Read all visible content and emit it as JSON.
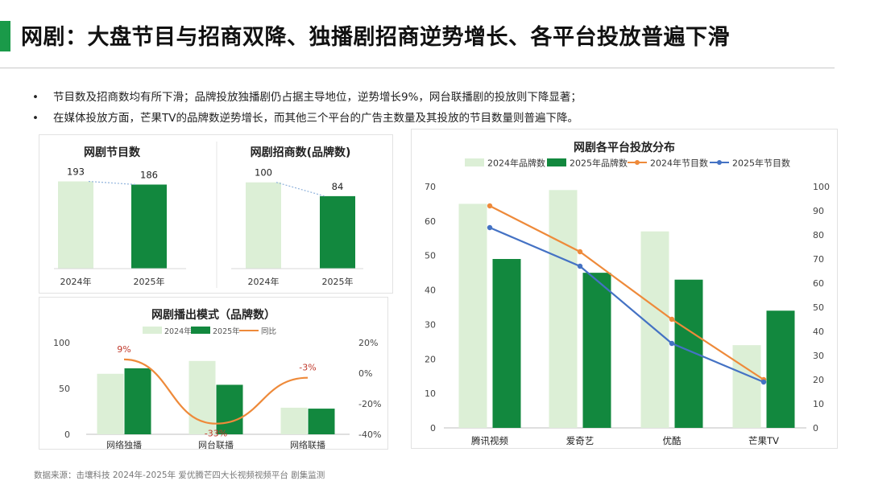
{
  "page": {
    "title": "网剧：大盘节目与招商双降、独播剧招商逆势增长、各平台投放普遍下滑",
    "bullets": [
      "节目数及招商数均有所下滑；品牌投放独播剧仍占据主导地位，逆势增长9%，网台联播剧的投放则下降显著；",
      "在媒体投放方面，芒果TV的品牌数逆势增长，而其他三个平台的广告主数量及其投放的节目数量则普遍下降。"
    ],
    "source": "数据来源：击壤科技 2024年-2025年 爱优腾芒四大长视频视频平台 剧集监测"
  },
  "colors": {
    "light_green": "#dcefd6",
    "dark_green": "#12883e",
    "orange": "#ee8a3a",
    "blue": "#4472c4",
    "dotted_line": "#8fb2dc",
    "accent": "#1a9a49"
  },
  "chart_data": [
    {
      "id": "programs",
      "type": "bar",
      "title": "网剧节目数",
      "categories": [
        "2024年",
        "2025年"
      ],
      "values": [
        193,
        186
      ],
      "ylim": [
        0,
        210
      ],
      "colors": [
        "#dcefd6",
        "#12883e"
      ]
    },
    {
      "id": "brands",
      "type": "bar",
      "title": "网剧招商数(品牌数)",
      "categories": [
        "2024年",
        "2025年"
      ],
      "values": [
        100,
        84
      ],
      "ylim": [
        0,
        110
      ],
      "colors": [
        "#dcefd6",
        "#12883e"
      ]
    },
    {
      "id": "modes",
      "type": "bar",
      "title": "网剧播出模式（品牌数）",
      "categories": [
        "网络独播",
        "网台联播",
        "网络联播"
      ],
      "series": [
        {
          "name": "2024年",
          "values": [
            66,
            80,
            29
          ]
        },
        {
          "name": "2025年",
          "values": [
            72,
            54,
            28
          ]
        }
      ],
      "line": {
        "name": "同比",
        "values": [
          9,
          -33,
          -3
        ],
        "labels": [
          "9%",
          "-33%",
          "-3%"
        ]
      },
      "ylim": [
        0,
        100
      ],
      "yticks": [
        "0",
        "50",
        "100"
      ],
      "y2lim": [
        -40,
        20
      ],
      "y2ticks": [
        "-40%",
        "-20%",
        "0%",
        "20%"
      ],
      "legend": "top"
    },
    {
      "id": "platforms",
      "type": "bar",
      "title": "网剧各平台投放分布",
      "categories": [
        "腾讯视频",
        "爱奇艺",
        "优酷",
        "芒果TV"
      ],
      "series": [
        {
          "name": "2024年品牌数",
          "values": [
            65,
            69,
            57,
            24
          ]
        },
        {
          "name": "2025年品牌数",
          "values": [
            49,
            45,
            43,
            34
          ]
        }
      ],
      "lines": [
        {
          "name": "2024年节目数",
          "values": [
            92,
            73,
            45,
            20
          ]
        },
        {
          "name": "2025年节目数",
          "values": [
            83,
            67,
            35,
            19
          ]
        }
      ],
      "ylim": [
        0,
        70
      ],
      "yticks": [
        "0",
        "10",
        "20",
        "30",
        "40",
        "50",
        "60",
        "70"
      ],
      "y2lim": [
        0,
        100
      ],
      "y2ticks": [
        "0",
        "10",
        "20",
        "30",
        "40",
        "50",
        "60",
        "70",
        "80",
        "90",
        "100"
      ],
      "legend": "top"
    }
  ]
}
